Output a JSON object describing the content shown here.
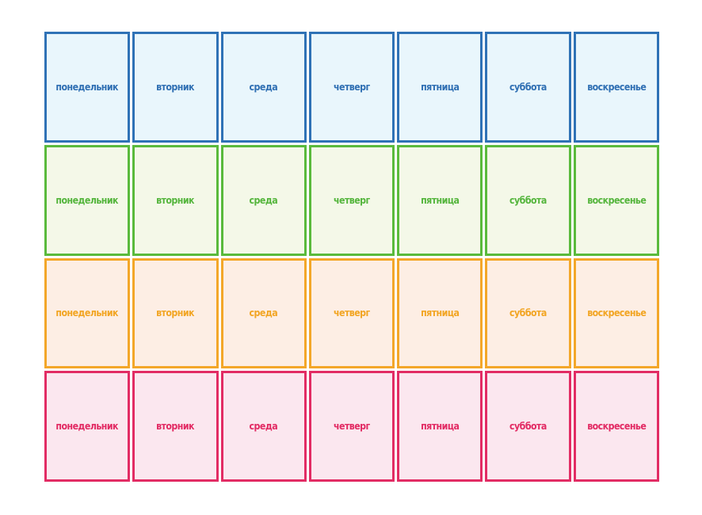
{
  "days": [
    "понедельник",
    "вторник",
    "среда",
    "четверг",
    "пятница",
    "суббота",
    "воскресенье"
  ],
  "rows": [
    {
      "name": "blue",
      "border_color": "#2f72b6",
      "fill_color": "#e9f6fc",
      "text_color": "#2f6fb3"
    },
    {
      "name": "green",
      "border_color": "#5aba3c",
      "fill_color": "#f4f8e8",
      "text_color": "#54b53c"
    },
    {
      "name": "orange",
      "border_color": "#f3a729",
      "fill_color": "#fdeee4",
      "text_color": "#f2a523"
    },
    {
      "name": "pink",
      "border_color": "#e22c64",
      "fill_color": "#fbe7ef",
      "text_color": "#e22a63"
    }
  ]
}
